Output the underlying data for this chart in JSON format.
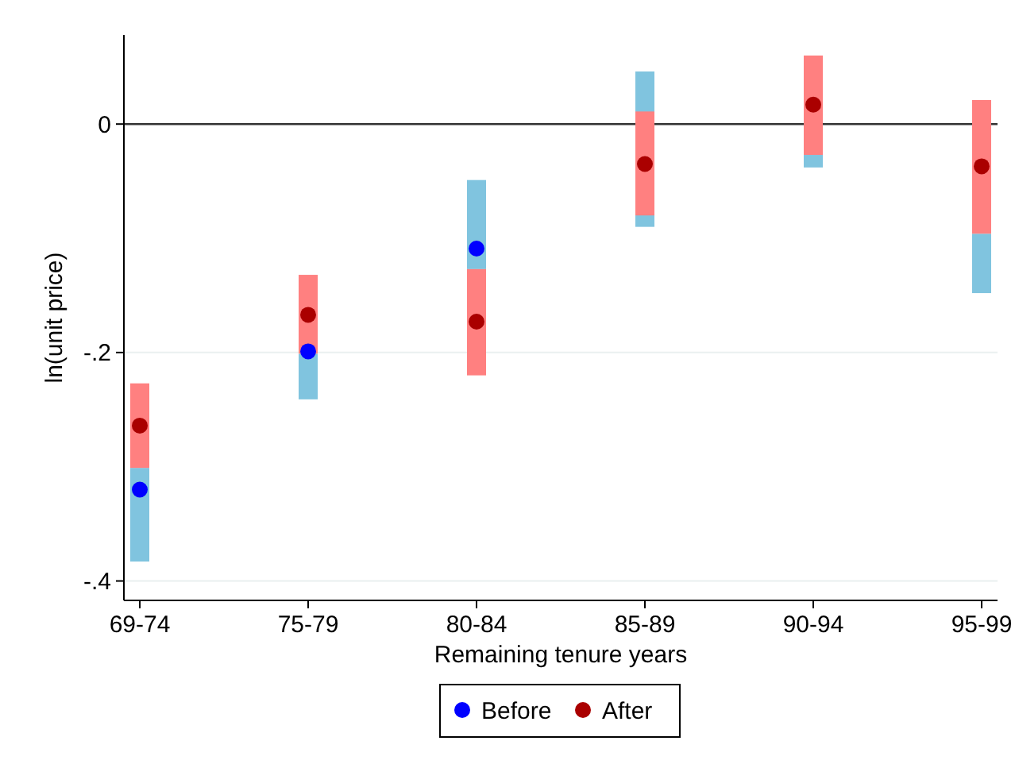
{
  "chart_data": {
    "type": "scatter",
    "xlabel": "Remaining tenure years",
    "ylabel": "ln(unit price)",
    "categories": [
      "69-74",
      "75-79",
      "80-84",
      "85-89",
      "90-94",
      "95-99"
    ],
    "ylim": [
      -0.417,
      0.078
    ],
    "yticks": [
      {
        "value": -0.4,
        "label": "-.4"
      },
      {
        "value": -0.2,
        "label": "-.2"
      },
      0
    ],
    "grid": "y",
    "legend": "bottom",
    "marker": "circle",
    "ref_lines": [
      {
        "axis": "y",
        "value": 0,
        "color": "#333333"
      }
    ],
    "series": [
      {
        "type": "bar",
        "color": "#80c4df",
        "base": [
          -0.383,
          -0.241,
          -0.127,
          -0.09,
          -0.038,
          -0.148
        ],
        "values": [
          0.082,
          0.04,
          0.078,
          0.136,
          0.011,
          0.052
        ]
      },
      {
        "type": "bar",
        "color": "#ff8080",
        "base": [
          -0.301,
          -0.201,
          -0.22,
          -0.08,
          -0.027,
          -0.096
        ],
        "values": [
          0.074,
          0.069,
          0.093,
          0.091,
          0.087,
          0.117
        ]
      },
      {
        "name": "Before",
        "color": "#0000ff",
        "values": [
          -0.32,
          -0.199,
          -0.109,
          null,
          null,
          null
        ]
      },
      {
        "name": "After",
        "color": "#aa0000",
        "values": [
          -0.264,
          -0.167,
          -0.173,
          -0.035,
          0.017,
          -0.037
        ]
      }
    ]
  }
}
